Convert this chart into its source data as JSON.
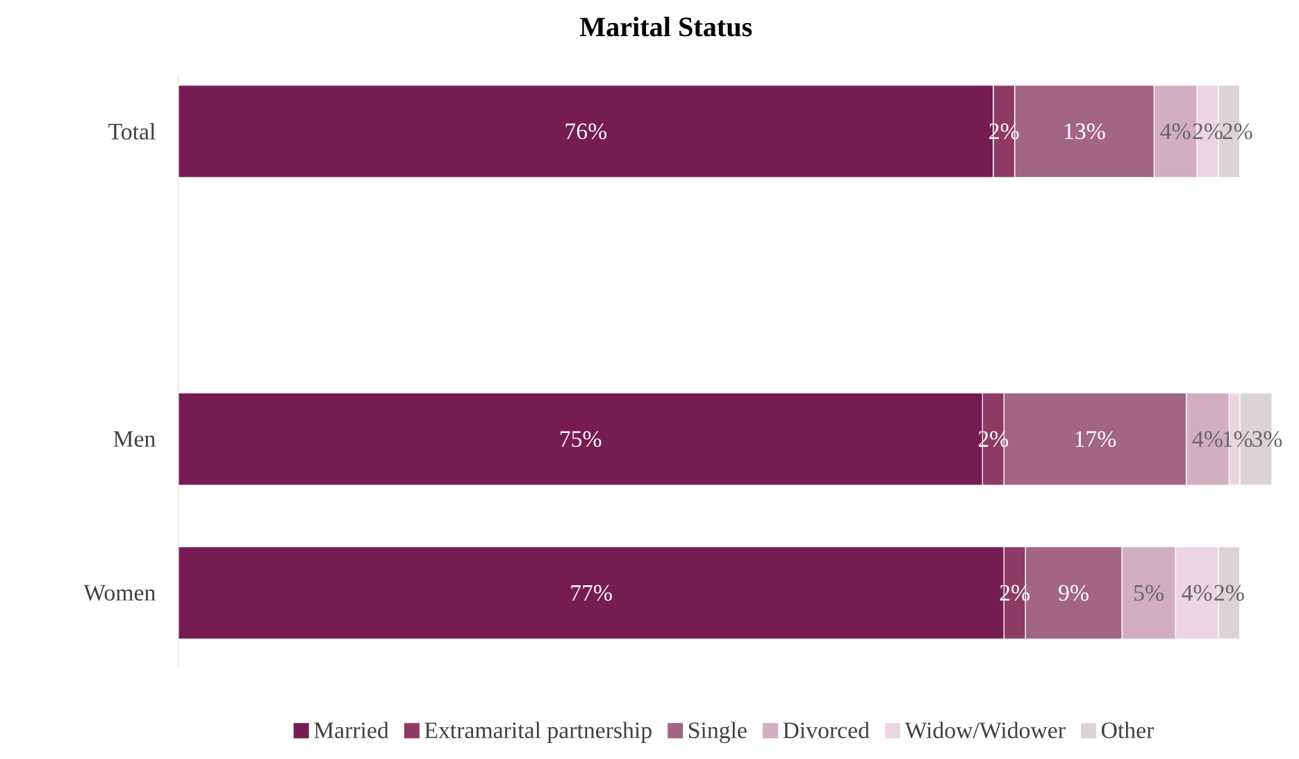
{
  "chart_data": {
    "type": "bar",
    "orientation": "horizontal",
    "stacked": true,
    "title": "Marital Status",
    "categories": [
      "Total",
      null,
      "Men",
      "Women"
    ],
    "series": [
      {
        "name": "Married",
        "color": "#761c52",
        "values": [
          76,
          null,
          75,
          77
        ],
        "value_labels": [
          "76%",
          null,
          "75%",
          "77%"
        ]
      },
      {
        "name": "Extramarital partnership",
        "color": "#8e3a67",
        "values": [
          2,
          null,
          2,
          2
        ],
        "value_labels": [
          "2%",
          null,
          "2%",
          "2%"
        ]
      },
      {
        "name": "Single",
        "color": "#a26586",
        "values": [
          13,
          null,
          17,
          9
        ],
        "value_labels": [
          "13%",
          null,
          "17%",
          "9%"
        ]
      },
      {
        "name": "Divorced",
        "color": "#d2aec0",
        "values": [
          4,
          null,
          4,
          5
        ],
        "value_labels": [
          "4%",
          null,
          "4%",
          "5%"
        ]
      },
      {
        "name": "Widow/Widower",
        "color": "#ecd5e0",
        "values": [
          2,
          null,
          1,
          4
        ],
        "value_labels": [
          "2%",
          null,
          "1%",
          "4%"
        ]
      },
      {
        "name": "Other",
        "color": "#dcd3d7",
        "values": [
          2,
          null,
          3,
          2
        ],
        "value_labels": [
          "2%",
          null,
          "3%",
          "2%"
        ]
      }
    ],
    "legend": "bottom"
  }
}
